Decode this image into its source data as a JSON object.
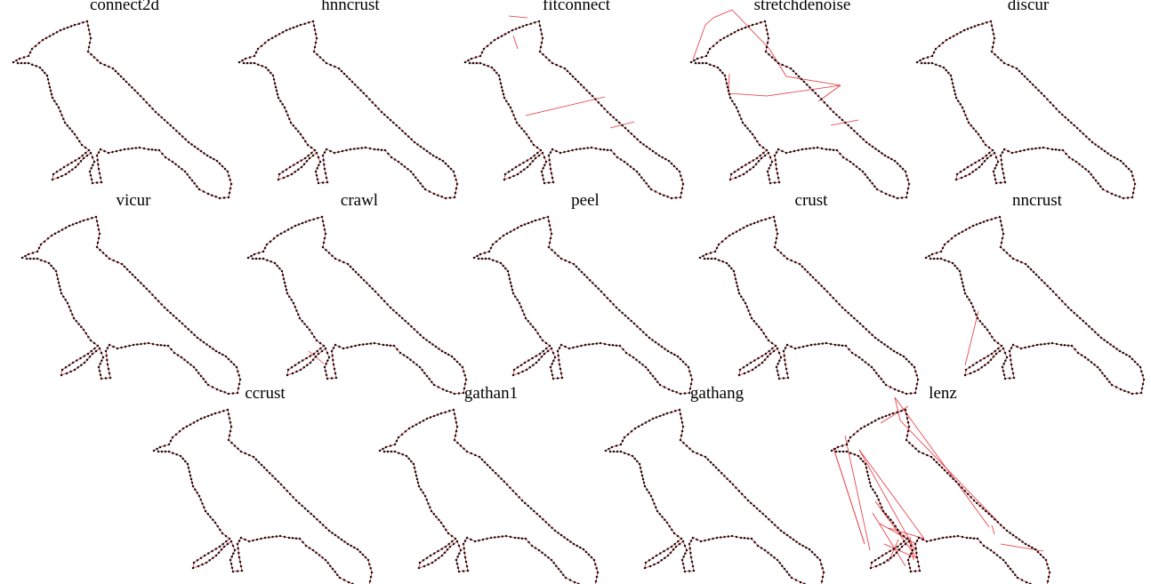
{
  "figure": {
    "panels": [
      {
        "id": "connect2d",
        "title": "connect2d",
        "extra_edges": []
      },
      {
        "id": "hnncrust",
        "title": "hnncrust",
        "extra_edges": []
      },
      {
        "id": "fitconnect",
        "title": "fitconnect",
        "extra_edges": [
          [
            [
              52,
              8
            ],
            [
              73,
              10
            ]
          ],
          [
            [
              57,
              30
            ],
            [
              62,
              45
            ]
          ],
          [
            [
              71,
              120
            ],
            [
              160,
              99
            ]
          ],
          [
            [
              166,
              134
            ],
            [
              193,
              127
            ]
          ]
        ]
      },
      {
        "id": "stretchdenoise",
        "title": "stretchdenoise",
        "extra_edges": [
          [
            [
              5,
              57
            ],
            [
              19,
              18
            ]
          ],
          [
            [
              19,
              18
            ],
            [
              28,
              10
            ]
          ],
          [
            [
              28,
              10
            ],
            [
              49,
              1
            ]
          ],
          [
            [
              49,
              1
            ],
            [
              91,
              45
            ]
          ],
          [
            [
              91,
              45
            ],
            [
              110,
              76
            ]
          ],
          [
            [
              110,
              76
            ],
            [
              171,
              86
            ]
          ],
          [
            [
              171,
              86
            ],
            [
              88,
              98
            ]
          ],
          [
            [
              88,
              98
            ],
            [
              45,
              95
            ]
          ],
          [
            [
              45,
              95
            ],
            [
              46,
              73
            ]
          ],
          [
            [
              160,
              131
            ],
            [
              191,
              125
            ]
          ],
          [
            [
              171,
              86
            ],
            [
              146,
              104
            ]
          ]
        ]
      },
      {
        "id": "discur",
        "title": "discur",
        "extra_edges": []
      },
      {
        "id": "vicur",
        "title": "vicur",
        "extra_edges": []
      },
      {
        "id": "crawl",
        "title": "crawl",
        "extra_edges": [
          [
            [
              71,
              165
            ],
            [
              88,
              179
            ]
          ]
        ]
      },
      {
        "id": "peel",
        "title": "peel",
        "extra_edges": []
      },
      {
        "id": "crust",
        "title": "crust",
        "extra_edges": []
      },
      {
        "id": "nncrust",
        "title": "nncrust",
        "extra_edges": [
          [
            [
              62,
              120
            ],
            [
              47,
              181
            ]
          ]
        ]
      },
      {
        "id": "ccrust",
        "title": "ccrust",
        "extra_edges": []
      },
      {
        "id": "gathan1",
        "title": "gathan1",
        "extra_edges": []
      },
      {
        "id": "gathang",
        "title": "gathang",
        "extra_edges": []
      },
      {
        "id": "lenz",
        "title": "lenz",
        "extra_edges": [
          [
            [
              5,
              57
            ],
            [
              40,
              165
            ]
          ],
          [
            [
              40,
              165
            ],
            [
              5,
              57
            ]
          ],
          [
            [
              58,
              29
            ],
            [
              89,
              10
            ]
          ],
          [
            [
              74,
              0
            ],
            [
              80,
              26
            ]
          ],
          [
            [
              74,
              0
            ],
            [
              180,
              146
            ]
          ],
          [
            [
              80,
              26
            ],
            [
              190,
              140
            ]
          ],
          [
            [
              18,
              43
            ],
            [
              46,
              172
            ]
          ],
          [
            [
              34,
              59
            ],
            [
              97,
              172
            ]
          ],
          [
            [
              34,
              59
            ],
            [
              107,
              159
            ]
          ],
          [
            [
              52,
              117
            ],
            [
              99,
              181
            ]
          ],
          [
            [
              57,
              142
            ],
            [
              98,
              165
            ]
          ],
          [
            [
              67,
              147
            ],
            [
              107,
              159
            ]
          ],
          [
            [
              91,
              157
            ],
            [
              95,
              183
            ]
          ],
          [
            [
              78,
              160
            ],
            [
              67,
              185
            ]
          ],
          [
            [
              62,
              165
            ],
            [
              99,
              181
            ]
          ],
          [
            [
              183,
              144
            ],
            [
              186,
              154
            ]
          ],
          [
            [
              193,
              165
            ],
            [
              241,
              173
            ]
          ],
          [
            [
              49,
              130
            ],
            [
              86,
              190
            ]
          ]
        ]
      }
    ]
  }
}
